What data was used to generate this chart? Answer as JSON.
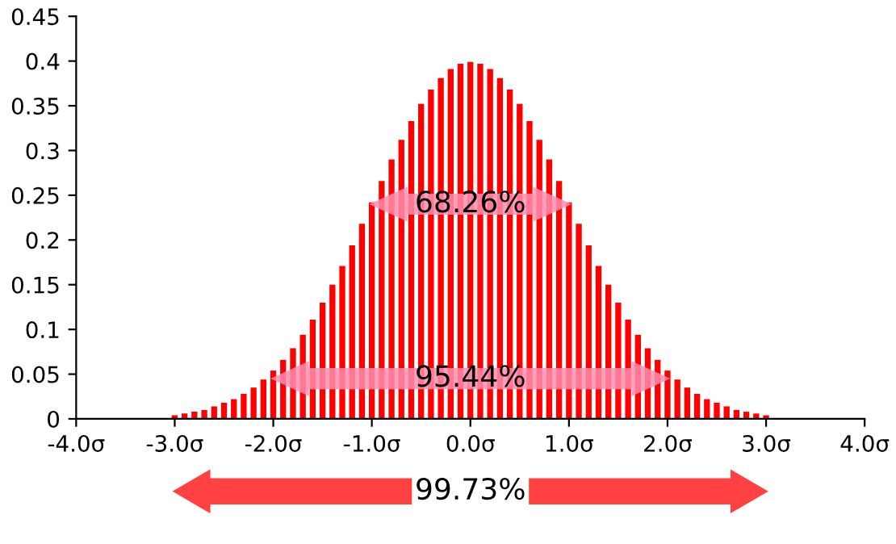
{
  "chart_data": {
    "type": "bar",
    "x": [
      -3.0,
      -2.9,
      -2.8,
      -2.7,
      -2.6,
      -2.5,
      -2.4,
      -2.3,
      -2.2,
      -2.1,
      -2.0,
      -1.9,
      -1.8,
      -1.7,
      -1.6,
      -1.5,
      -1.4,
      -1.3,
      -1.2,
      -1.1,
      -1.0,
      -0.9,
      -0.8,
      -0.7,
      -0.6,
      -0.5,
      -0.4,
      -0.3,
      -0.2,
      -0.1,
      0.0,
      0.1,
      0.2,
      0.3,
      0.4,
      0.5,
      0.6,
      0.7,
      0.8,
      0.9,
      1.0,
      1.1,
      1.2,
      1.3,
      1.4,
      1.5,
      1.6,
      1.7,
      1.8,
      1.9,
      2.0,
      2.1,
      2.2,
      2.3,
      2.4,
      2.5,
      2.6,
      2.7,
      2.8,
      2.9,
      3.0
    ],
    "values": [
      0.004,
      0.006,
      0.008,
      0.01,
      0.014,
      0.018,
      0.022,
      0.028,
      0.035,
      0.044,
      0.054,
      0.066,
      0.079,
      0.094,
      0.111,
      0.13,
      0.15,
      0.171,
      0.194,
      0.218,
      0.242,
      0.266,
      0.29,
      0.312,
      0.333,
      0.352,
      0.368,
      0.381,
      0.391,
      0.397,
      0.399,
      0.397,
      0.391,
      0.381,
      0.368,
      0.352,
      0.333,
      0.312,
      0.29,
      0.266,
      0.242,
      0.218,
      0.194,
      0.171,
      0.15,
      0.13,
      0.111,
      0.094,
      0.079,
      0.066,
      0.054,
      0.044,
      0.035,
      0.028,
      0.022,
      0.018,
      0.014,
      0.01,
      0.008,
      0.006,
      0.004
    ],
    "color": "#ff0000",
    "xlim": [
      -4,
      4
    ],
    "xticks": [
      {
        "value": -4,
        "label": "-4.0σ"
      },
      {
        "value": -3,
        "label": "-3.0σ"
      },
      {
        "value": -2,
        "label": "-2.0σ"
      },
      {
        "value": -1,
        "label": "-1.0σ"
      },
      {
        "value": 0,
        "label": "0.0σ"
      },
      {
        "value": 1,
        "label": "1.0σ"
      },
      {
        "value": 2,
        "label": "2.0σ"
      },
      {
        "value": 3,
        "label": "3.0σ"
      },
      {
        "value": 4,
        "label": "4.0σ"
      }
    ],
    "ylim": [
      0,
      0.45
    ],
    "yticks": [
      0,
      0.05,
      0.1,
      0.15,
      0.2,
      0.25,
      0.3,
      0.35,
      0.4,
      0.45
    ],
    "grid": false,
    "annotations": [
      {
        "text": "68.26%",
        "x": 0,
        "y": 0.24
      },
      {
        "text": "95.44%",
        "x": 0,
        "y": 0.045
      },
      "99.73%"
    ]
  }
}
